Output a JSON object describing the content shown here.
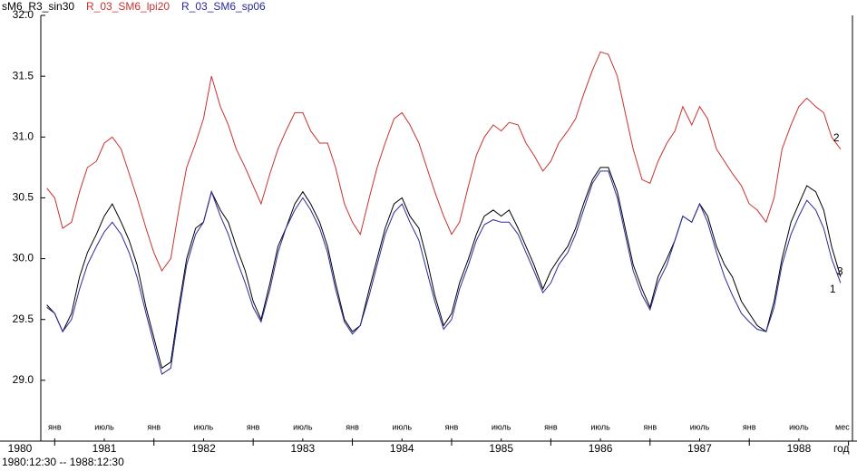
{
  "chart_data": {
    "type": "line",
    "x": [
      1980.92,
      1981.0,
      1981.08,
      1981.17,
      1981.25,
      1981.33,
      1981.42,
      1981.5,
      1981.58,
      1981.67,
      1981.75,
      1981.83,
      1981.92,
      1982.0,
      1982.08,
      1982.17,
      1982.25,
      1982.33,
      1982.42,
      1982.5,
      1982.58,
      1982.67,
      1982.75,
      1982.83,
      1982.92,
      1983.0,
      1983.08,
      1983.17,
      1983.25,
      1983.33,
      1983.42,
      1983.5,
      1983.58,
      1983.67,
      1983.75,
      1983.83,
      1983.92,
      1984.0,
      1984.08,
      1984.17,
      1984.25,
      1984.33,
      1984.42,
      1984.5,
      1984.58,
      1984.67,
      1984.75,
      1984.83,
      1984.92,
      1985.0,
      1985.08,
      1985.17,
      1985.25,
      1985.33,
      1985.42,
      1985.5,
      1985.58,
      1985.67,
      1985.75,
      1985.83,
      1985.92,
      1986.0,
      1986.08,
      1986.17,
      1986.25,
      1986.33,
      1986.42,
      1986.5,
      1986.58,
      1986.67,
      1986.75,
      1986.83,
      1986.92,
      1987.0,
      1987.08,
      1987.17,
      1987.25,
      1987.33,
      1987.42,
      1987.5,
      1987.58,
      1987.67,
      1987.75,
      1987.83,
      1987.92,
      1988.0,
      1988.08,
      1988.17,
      1988.25,
      1988.33,
      1988.42,
      1988.5,
      1988.58,
      1988.67,
      1988.75,
      1988.83,
      1988.92
    ],
    "series": [
      {
        "name": "sM6_R3_sin30",
        "color": "#000000",
        "end_label": "1",
        "values": [
          29.62,
          29.55,
          29.4,
          29.55,
          29.85,
          30.05,
          30.2,
          30.35,
          30.45,
          30.3,
          30.15,
          29.95,
          29.6,
          29.35,
          29.1,
          29.15,
          29.6,
          30.0,
          30.25,
          30.3,
          30.55,
          30.4,
          30.3,
          30.1,
          29.9,
          29.65,
          29.5,
          29.8,
          30.1,
          30.25,
          30.45,
          30.55,
          30.45,
          30.3,
          30.1,
          29.8,
          29.5,
          29.4,
          29.45,
          29.75,
          30.0,
          30.25,
          30.45,
          30.5,
          30.35,
          30.25,
          30.0,
          29.7,
          29.45,
          29.55,
          29.8,
          30.0,
          30.2,
          30.35,
          30.4,
          30.35,
          30.4,
          30.25,
          30.1,
          29.95,
          29.75,
          29.9,
          30.0,
          30.1,
          30.25,
          30.45,
          30.65,
          30.75,
          30.75,
          30.55,
          30.25,
          29.95,
          29.75,
          29.6,
          29.85,
          30.0,
          30.15,
          30.35,
          30.3,
          30.45,
          30.35,
          30.1,
          29.95,
          29.85,
          29.65,
          29.55,
          29.45,
          29.4,
          29.65,
          30.0,
          30.3,
          30.45,
          30.6,
          30.55,
          30.4,
          30.1,
          29.85
        ]
      },
      {
        "name": "R_03_SM6_lpi20",
        "color": "#c83232",
        "end_label": "2",
        "values": [
          30.58,
          30.5,
          30.25,
          30.3,
          30.55,
          30.75,
          30.8,
          30.95,
          31.0,
          30.9,
          30.7,
          30.5,
          30.25,
          30.05,
          29.9,
          30.0,
          30.4,
          30.75,
          30.95,
          31.15,
          31.5,
          31.25,
          31.1,
          30.9,
          30.75,
          30.6,
          30.45,
          30.7,
          30.9,
          31.05,
          31.2,
          31.2,
          31.05,
          30.95,
          30.95,
          30.75,
          30.45,
          30.3,
          30.2,
          30.5,
          30.75,
          30.95,
          31.15,
          31.2,
          31.1,
          30.95,
          30.75,
          30.55,
          30.35,
          30.2,
          30.3,
          30.6,
          30.85,
          31.0,
          31.1,
          31.05,
          31.12,
          31.1,
          30.95,
          30.85,
          30.72,
          30.8,
          30.95,
          31.05,
          31.15,
          31.35,
          31.55,
          31.7,
          31.68,
          31.5,
          31.2,
          30.9,
          30.65,
          30.62,
          30.8,
          30.95,
          31.05,
          31.25,
          31.1,
          31.25,
          31.15,
          30.9,
          30.8,
          30.7,
          30.6,
          30.45,
          30.4,
          30.3,
          30.5,
          30.9,
          31.1,
          31.25,
          31.32,
          31.25,
          31.2,
          31.0,
          30.9
        ]
      },
      {
        "name": "R_03_SM6_sp06",
        "color": "#2a2a9a",
        "end_label": "3",
        "values": [
          29.6,
          29.55,
          29.4,
          29.5,
          29.75,
          29.95,
          30.1,
          30.22,
          30.3,
          30.2,
          30.05,
          29.85,
          29.55,
          29.3,
          29.05,
          29.1,
          29.55,
          29.95,
          30.2,
          30.3,
          30.55,
          30.35,
          30.2,
          30.0,
          29.8,
          29.6,
          29.48,
          29.75,
          30.05,
          30.25,
          30.4,
          30.5,
          30.4,
          30.25,
          30.05,
          29.75,
          29.48,
          29.38,
          29.45,
          29.7,
          29.95,
          30.2,
          30.38,
          30.45,
          30.3,
          30.15,
          29.9,
          29.65,
          29.42,
          29.5,
          29.75,
          29.95,
          30.15,
          30.28,
          30.32,
          30.3,
          30.3,
          30.2,
          30.05,
          29.9,
          29.72,
          29.8,
          29.95,
          30.05,
          30.2,
          30.4,
          30.62,
          30.72,
          30.72,
          30.5,
          30.2,
          29.9,
          29.7,
          29.58,
          29.8,
          29.95,
          30.15,
          30.35,
          30.3,
          30.45,
          30.3,
          30.05,
          29.85,
          29.7,
          29.55,
          29.48,
          29.42,
          29.4,
          29.6,
          29.95,
          30.2,
          30.35,
          30.48,
          30.4,
          30.25,
          30.0,
          29.8
        ]
      }
    ],
    "xlim": [
      1980.86,
      1989.04
    ],
    "xticks": [
      {
        "value": 1981,
        "label": "янв"
      },
      {
        "value": 1981.5,
        "label": "июль"
      },
      {
        "value": 1982,
        "label": "янв"
      },
      {
        "value": 1982.5,
        "label": "июль"
      },
      {
        "value": 1983,
        "label": "янв"
      },
      {
        "value": 1983.5,
        "label": "июль"
      },
      {
        "value": 1984,
        "label": "янв"
      },
      {
        "value": 1984.5,
        "label": "июль"
      },
      {
        "value": 1985,
        "label": "янв"
      },
      {
        "value": 1985.5,
        "label": "июль"
      },
      {
        "value": 1986,
        "label": "янв"
      },
      {
        "value": 1986.5,
        "label": "июль"
      },
      {
        "value": 1987,
        "label": "янв"
      },
      {
        "value": 1987.5,
        "label": "июль"
      },
      {
        "value": 1988,
        "label": "янв"
      },
      {
        "value": 1988.5,
        "label": "июль"
      }
    ],
    "year_ticks": [
      {
        "value": 1980.5,
        "label": "1980"
      },
      {
        "value": 1981.5,
        "label": "1981"
      },
      {
        "value": 1982.5,
        "label": "1982"
      },
      {
        "value": 1983.5,
        "label": "1983"
      },
      {
        "value": 1984.5,
        "label": "1984"
      },
      {
        "value": 1985.5,
        "label": "1985"
      },
      {
        "value": 1986.5,
        "label": "1986"
      },
      {
        "value": 1987.5,
        "label": "1987"
      },
      {
        "value": 1988.5,
        "label": "1988"
      }
    ],
    "x_month_label": "мес",
    "x_year_label": "год",
    "ylim": [
      28.5,
      32.0
    ],
    "yticks": [
      {
        "value": 29,
        "label": "29.0"
      },
      29.5,
      {
        "value": 30,
        "label": "30.0"
      },
      30.5,
      {
        "value": 31,
        "label": "31.0"
      },
      31.5,
      {
        "value": 32,
        "label": "32.0"
      }
    ],
    "footnote": "1980:12:30 -- 1988:12:30"
  }
}
